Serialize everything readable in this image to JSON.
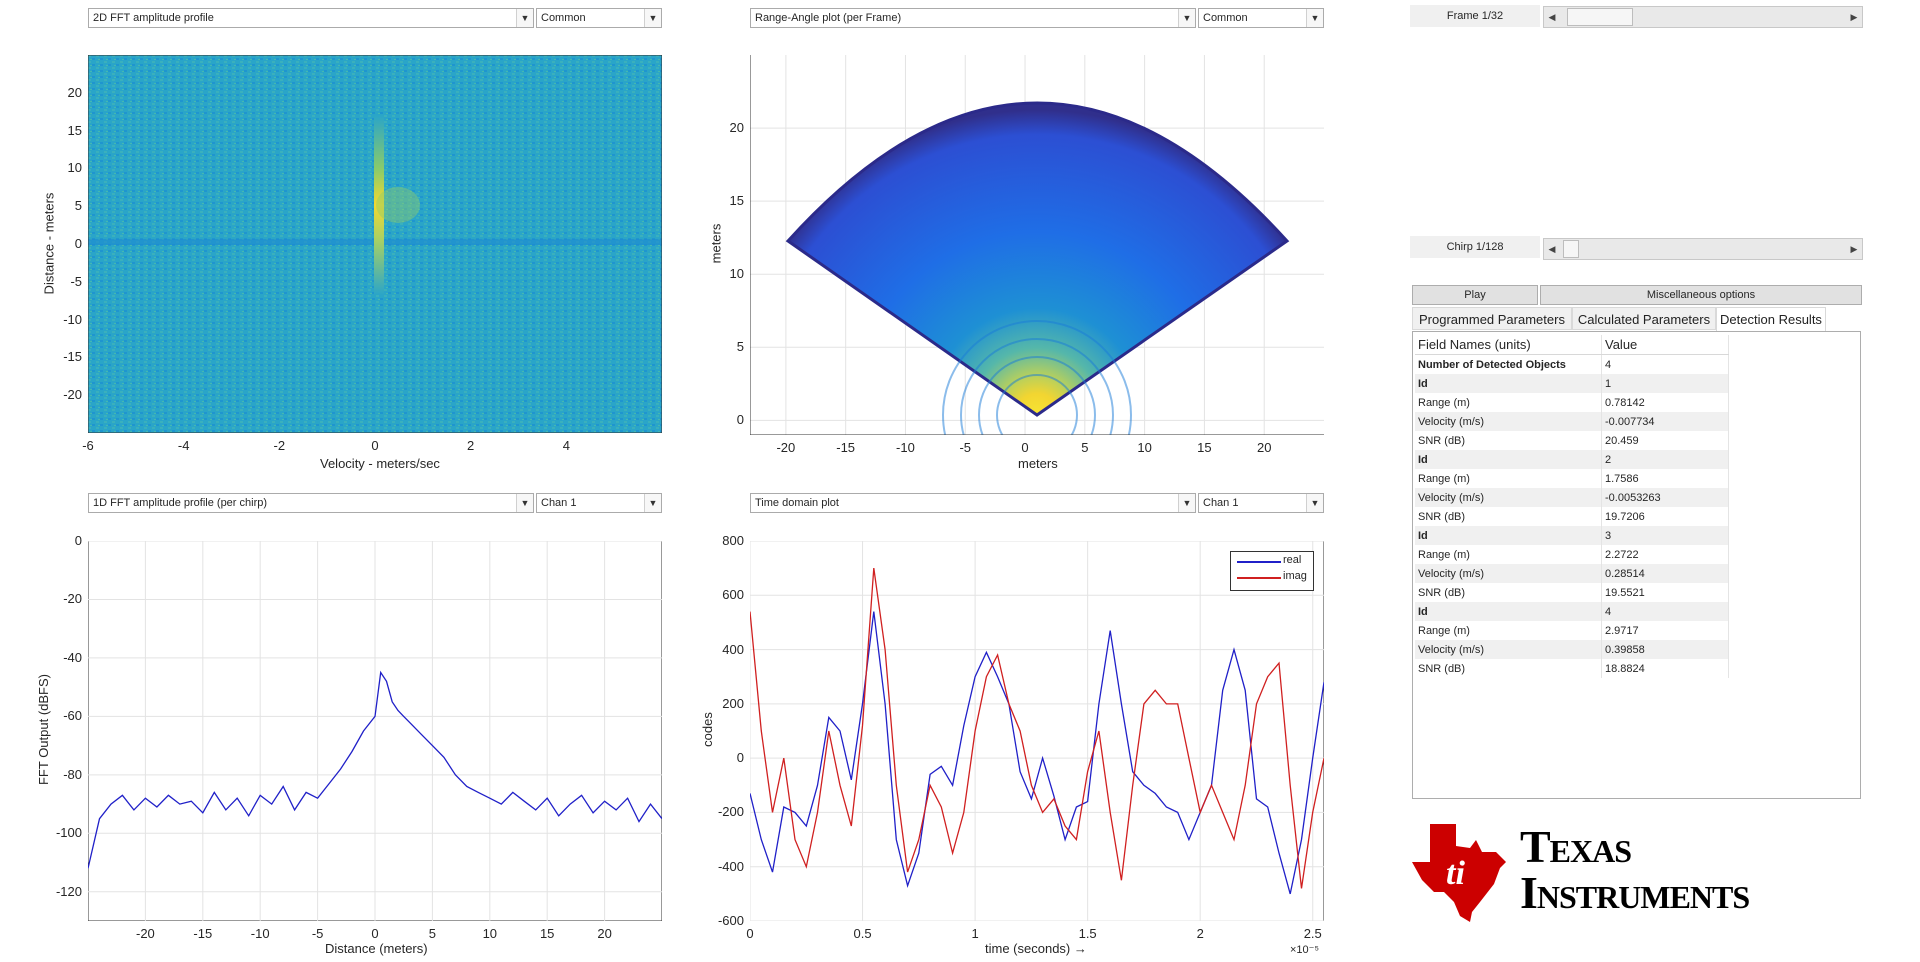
{
  "plots": {
    "top_left": {
      "selector": "2D FFT amplitude profile",
      "option": "Common",
      "xlabel": "Velocity - meters/sec",
      "ylabel": "Distance - meters",
      "xticks": [
        "-6",
        "-4",
        "-2",
        "0",
        "2",
        "4"
      ],
      "yticks": [
        "20",
        "15",
        "10",
        "5",
        "0",
        "-5",
        "-10",
        "-15",
        "-20"
      ]
    },
    "top_mid": {
      "selector": "Range-Angle plot (per Frame)",
      "option": "Common",
      "xlabel": "meters",
      "ylabel": "meters",
      "xticks": [
        "-20",
        "-15",
        "-10",
        "-5",
        "0",
        "5",
        "10",
        "15",
        "20"
      ],
      "yticks": [
        "20",
        "15",
        "10",
        "5",
        "0"
      ]
    },
    "bottom_left": {
      "selector": "1D FFT amplitude profile (per chirp)",
      "option": "Chan 1",
      "xlabel": "Distance (meters)",
      "ylabel": "FFT Output (dBFS)",
      "xticks": [
        "-20",
        "-15",
        "-10",
        "-5",
        "0",
        "5",
        "10",
        "15",
        "20"
      ],
      "yticks": [
        "0",
        "-20",
        "-40",
        "-60",
        "-80",
        "-100",
        "-120"
      ]
    },
    "bottom_mid": {
      "selector": "Time domain plot",
      "option": "Chan 1",
      "xlabel": "time  (seconds) →",
      "ylabel": "codes",
      "exponent": "×10⁻⁵",
      "xticks": [
        "0",
        "0.5",
        "1",
        "1.5",
        "2",
        "2.5"
      ],
      "yticks": [
        "800",
        "600",
        "400",
        "200",
        "0",
        "-200",
        "-400",
        "-600"
      ],
      "legend": [
        "real",
        "imag"
      ]
    }
  },
  "chart_data": [
    {
      "type": "heatmap",
      "xlabel": "Velocity - meters/sec",
      "ylabel": "Distance - meters",
      "xlim": [
        -6,
        6
      ],
      "ylim": [
        -25,
        25
      ],
      "peaks": [
        {
          "x": 0.0,
          "y": 2.0,
          "level": "high"
        },
        {
          "x": 0.7,
          "y": 2.5,
          "level": "medium"
        }
      ]
    },
    {
      "type": "heatmap",
      "xlabel": "meters",
      "ylabel": "meters",
      "xlim": [
        -23,
        25
      ],
      "ylim": [
        -1,
        25
      ],
      "shape": "sector"
    },
    {
      "type": "line",
      "xlabel": "Distance (meters)",
      "ylabel": "FFT Output (dBFS)",
      "xlim": [
        -25,
        25
      ],
      "ylim": [
        -130,
        0
      ],
      "series": [
        {
          "x": [
            -25,
            -24,
            -23,
            -22,
            -21,
            -20,
            -19,
            -18,
            -17,
            -16,
            -15,
            -14,
            -13,
            -12,
            -11,
            -10,
            -9,
            -8,
            -7,
            -6,
            -5,
            -4,
            -3,
            -2,
            -1,
            0,
            0.5,
            1,
            1.5,
            2,
            2.5,
            3,
            4,
            5,
            6,
            7,
            8,
            9,
            10,
            11,
            12,
            13,
            14,
            15,
            16,
            17,
            18,
            19,
            20,
            21,
            22,
            23,
            24,
            25
          ],
          "values": [
            -112,
            -95,
            -90,
            -87,
            -92,
            -88,
            -91,
            -87,
            -90,
            -89,
            -93,
            -86,
            -92,
            -88,
            -94,
            -87,
            -90,
            -84,
            -92,
            -86,
            -88,
            -83,
            -78,
            -72,
            -65,
            -60,
            -45,
            -48,
            -55,
            -58,
            -60,
            -62,
            -66,
            -70,
            -74,
            -80,
            -84,
            -86,
            -88,
            -90,
            -86,
            -89,
            -92,
            -88,
            -94,
            -90,
            -87,
            -93,
            -89,
            -92,
            -88,
            -96,
            -90,
            -95
          ]
        }
      ]
    },
    {
      "type": "line",
      "xlabel": "time  (seconds) →",
      "ylabel": "codes",
      "xlim": [
        0,
        2.55
      ],
      "ylim": [
        -600,
        800
      ],
      "x_scale": "×10⁻⁵",
      "series": [
        {
          "name": "real",
          "x": [
            0,
            0.05,
            0.1,
            0.15,
            0.2,
            0.25,
            0.3,
            0.35,
            0.4,
            0.45,
            0.5,
            0.55,
            0.6,
            0.65,
            0.7,
            0.75,
            0.8,
            0.85,
            0.9,
            0.95,
            1.0,
            1.05,
            1.1,
            1.15,
            1.2,
            1.25,
            1.3,
            1.35,
            1.4,
            1.45,
            1.5,
            1.55,
            1.6,
            1.65,
            1.7,
            1.75,
            1.8,
            1.85,
            1.9,
            1.95,
            2.0,
            2.05,
            2.1,
            2.15,
            2.2,
            2.25,
            2.3,
            2.35,
            2.4,
            2.45,
            2.5,
            2.55
          ],
          "values": [
            -130,
            -300,
            -420,
            -180,
            -200,
            -250,
            -100,
            150,
            100,
            -80,
            200,
            540,
            200,
            -300,
            -470,
            -350,
            -60,
            -30,
            -100,
            120,
            300,
            390,
            300,
            200,
            -50,
            -150,
            0,
            -140,
            -300,
            -180,
            -160,
            200,
            470,
            200,
            -50,
            -100,
            -130,
            -180,
            -200,
            -300,
            -200,
            -100,
            250,
            400,
            250,
            -150,
            -180,
            -350,
            -500,
            -300,
            0,
            280
          ]
        },
        {
          "name": "imag",
          "x": [
            0,
            0.05,
            0.1,
            0.15,
            0.2,
            0.25,
            0.3,
            0.35,
            0.4,
            0.45,
            0.5,
            0.55,
            0.6,
            0.65,
            0.7,
            0.75,
            0.8,
            0.85,
            0.9,
            0.95,
            1.0,
            1.05,
            1.1,
            1.15,
            1.2,
            1.25,
            1.3,
            1.35,
            1.4,
            1.45,
            1.5,
            1.55,
            1.6,
            1.65,
            1.7,
            1.75,
            1.8,
            1.85,
            1.9,
            1.95,
            2.0,
            2.05,
            2.1,
            2.15,
            2.2,
            2.25,
            2.3,
            2.35,
            2.4,
            2.45,
            2.5,
            2.55
          ],
          "values": [
            540,
            100,
            -200,
            0,
            -300,
            -400,
            -200,
            100,
            -100,
            -250,
            120,
            700,
            400,
            -100,
            -420,
            -300,
            -100,
            -180,
            -350,
            -200,
            100,
            300,
            380,
            200,
            100,
            -100,
            -200,
            -150,
            -250,
            -300,
            -50,
            100,
            -200,
            -450,
            -100,
            200,
            250,
            200,
            200,
            0,
            -200,
            -100,
            -200,
            -300,
            -100,
            200,
            300,
            350,
            -100,
            -480,
            -200,
            0
          ]
        }
      ]
    }
  ],
  "right_panel": {
    "frame_label": "Frame 1/32",
    "chirp_label": "Chirp 1/128",
    "frame_value": 0.08,
    "chirp_value": 0.01,
    "play_label": "Play",
    "misc_label": "Miscellaneous options",
    "tabs": [
      "Programmed Parameters",
      "Calculated Parameters",
      "Detection Results"
    ],
    "table_header": [
      "Field Names    (units)",
      "Value"
    ],
    "rows": [
      {
        "name": "Number of Detected Objects",
        "value": "4",
        "bold": true
      },
      {
        "name": "Id",
        "value": "1",
        "bold": true
      },
      {
        "name": "Range (m)",
        "value": "0.78142"
      },
      {
        "name": "Velocity (m/s)",
        "value": "-0.007734"
      },
      {
        "name": "SNR (dB)",
        "value": "20.459"
      },
      {
        "name": "Id",
        "value": "2",
        "bold": true
      },
      {
        "name": "Range (m)",
        "value": "1.7586"
      },
      {
        "name": "Velocity (m/s)",
        "value": "-0.0053263"
      },
      {
        "name": "SNR (dB)",
        "value": "19.7206"
      },
      {
        "name": "Id",
        "value": "3",
        "bold": true
      },
      {
        "name": "Range (m)",
        "value": "2.2722"
      },
      {
        "name": "Velocity (m/s)",
        "value": "0.28514"
      },
      {
        "name": "SNR (dB)",
        "value": "19.5521"
      },
      {
        "name": "Id",
        "value": "4",
        "bold": true
      },
      {
        "name": "Range (m)",
        "value": "2.9717"
      },
      {
        "name": "Velocity (m/s)",
        "value": "0.39858"
      },
      {
        "name": "SNR (dB)",
        "value": "18.8824"
      }
    ]
  },
  "logo": {
    "line1": "Texas",
    "line2": "Instruments",
    "color": "#cc0000",
    "icon": "ti-state-logo-icon"
  },
  "colors": {
    "real": "#2020c8",
    "imag": "#d02020",
    "heat_bg": "#2aa5c8",
    "sector_edge": "#2b2a8a"
  }
}
